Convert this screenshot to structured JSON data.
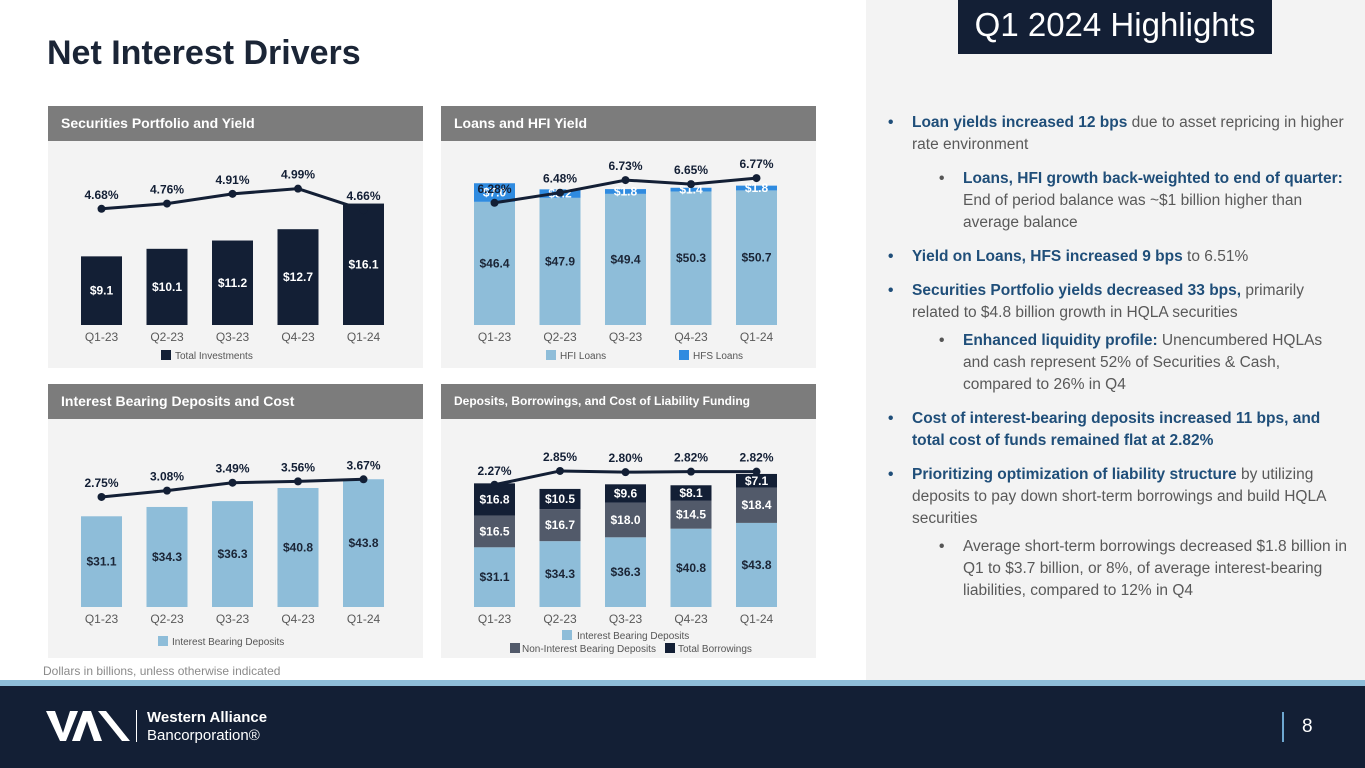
{
  "title": "Net Interest Drivers",
  "highlights_badge": "Q1 2024 Highlights",
  "footnote": "Dollars in billions, unless otherwise indicated",
  "footer": {
    "company_line1": "Western Alliance",
    "company_line2": "Bancorporation®",
    "page_number": "8"
  },
  "colors": {
    "navy": "#131f35",
    "blue": "#2f8be0",
    "light_blue": "#8ebdd9",
    "gray_bar": "#525a6a",
    "accent_text": "#1f4e79"
  },
  "bullets": [
    {
      "level": 1,
      "bold": "Loan yields increased 12 bps",
      "text": " due to asset repricing in higher rate environment"
    },
    {
      "level": 2,
      "bold": "Loans, HFI growth back-weighted to end of quarter:",
      "text": " End of period balance was ~$1 billion higher than average balance"
    },
    {
      "level": 1,
      "bold": "Yield on Loans, HFS increased 9 bps",
      "text": " to 6.51%"
    },
    {
      "level": 1,
      "bold": "Securities Portfolio yields decreased 33 bps,",
      "text": " primarily related to $4.8 billion growth in HQLA securities"
    },
    {
      "level": 2,
      "bold": "Enhanced liquidity profile:",
      "text": "  Unencumbered HQLAs and cash represent 52% of Securities & Cash, compared to 26% in Q4"
    },
    {
      "level": 1,
      "bold": "Cost of interest-bearing deposits increased 11 bps, and total cost of funds remained flat at 2.82%",
      "text": ""
    },
    {
      "level": 1,
      "bold": "Prioritizing optimization of liability structure",
      "text": " by utilizing deposits to pay down short-term borrowings and build HQLA securities"
    },
    {
      "level": 2,
      "bold": "",
      "text": "Average short-term borrowings decreased $1.8 billion in Q1 to $3.7 billion, or 8%, of average interest-bearing liabilities, compared to 12% in Q4"
    }
  ],
  "chart_data": [
    {
      "id": "securities",
      "type": "bar",
      "title": "Securities Portfolio and Yield",
      "categories": [
        "Q1-23",
        "Q2-23",
        "Q3-23",
        "Q4-23",
        "Q1-24"
      ],
      "series": [
        {
          "name": "Total Investments",
          "color": "#131f35",
          "values": [
            9.1,
            10.1,
            11.2,
            12.7,
            16.1
          ],
          "labels": [
            "$9.1",
            "$10.1",
            "$11.2",
            "$12.7",
            "$16.1"
          ]
        }
      ],
      "line": {
        "name": "Yield",
        "values": [
          4.68,
          4.76,
          4.91,
          4.99,
          4.66
        ],
        "labels": [
          "4.68%",
          "4.76%",
          "4.91%",
          "4.99%",
          "4.66%"
        ],
        "range": [
          4.0,
          5.2
        ]
      },
      "ymax": 17.5,
      "legend": [
        {
          "name": "Total Investments",
          "color": "#131f35"
        }
      ]
    },
    {
      "id": "loans",
      "type": "bar",
      "stacked": true,
      "title": "Loans and HFI Yield",
      "categories": [
        "Q1-23",
        "Q2-23",
        "Q3-23",
        "Q4-23",
        "Q1-24"
      ],
      "series": [
        {
          "name": "HFI Loans",
          "color": "#8ebdd9",
          "values": [
            46.4,
            47.9,
            49.4,
            50.3,
            50.7
          ],
          "labels": [
            "$46.4",
            "$47.9",
            "$49.4",
            "$50.3",
            "$50.7"
          ]
        },
        {
          "name": "HFS Loans",
          "color": "#2f8be0",
          "values": [
            7.0,
            3.2,
            1.8,
            1.4,
            1.8
          ],
          "labels": [
            "$7.0",
            "$3.2",
            "$1.8",
            "$1.4",
            "$1.8"
          ]
        }
      ],
      "line": {
        "name": "Yield",
        "values": [
          6.28,
          6.48,
          6.73,
          6.65,
          6.77
        ],
        "labels": [
          "6.28%",
          "6.48%",
          "6.73%",
          "6.65%",
          "6.77%"
        ],
        "range": [
          5.8,
          6.95
        ]
      },
      "ymax": 55,
      "legend": [
        {
          "name": "HFI Loans",
          "color": "#8ebdd9"
        },
        {
          "name": "HFS Loans",
          "color": "#2f8be0"
        }
      ]
    },
    {
      "id": "deposits",
      "type": "bar",
      "title": "Interest Bearing Deposits and Cost",
      "categories": [
        "Q1-23",
        "Q2-23",
        "Q3-23",
        "Q4-23",
        "Q1-24"
      ],
      "series": [
        {
          "name": "Interest Bearing Deposits",
          "color": "#8ebdd9",
          "values": [
            31.1,
            34.3,
            36.3,
            40.8,
            43.8
          ],
          "labels": [
            "$31.1",
            "$34.3",
            "$36.3",
            "$40.8",
            "$43.8"
          ]
        }
      ],
      "line": {
        "name": "Cost",
        "values": [
          2.75,
          3.08,
          3.49,
          3.56,
          3.67
        ],
        "labels": [
          "2.75%",
          "3.08%",
          "3.49%",
          "3.56%",
          "3.67%"
        ],
        "range": [
          1.5,
          4.1
        ]
      },
      "ymax": 48,
      "legend": [
        {
          "name": "Interest Bearing Deposits",
          "color": "#8ebdd9"
        }
      ]
    },
    {
      "id": "funding",
      "type": "bar",
      "stacked": true,
      "title": "Deposits, Borrowings, and Cost of Liability Funding",
      "categories": [
        "Q1-23",
        "Q2-23",
        "Q3-23",
        "Q4-23",
        "Q1-24"
      ],
      "series": [
        {
          "name": "Interest Bearing Deposits",
          "color": "#8ebdd9",
          "values": [
            31.1,
            34.3,
            36.3,
            40.8,
            43.8
          ],
          "labels": [
            "$31.1",
            "$34.3",
            "$36.3",
            "$40.8",
            "$43.8"
          ]
        },
        {
          "name": "Non-Interest Bearing Deposits",
          "color": "#525a6a",
          "values": [
            16.5,
            16.7,
            18.0,
            14.5,
            18.4
          ],
          "labels": [
            "$16.5",
            "$16.7",
            "$18.0",
            "$14.5",
            "$18.4"
          ]
        },
        {
          "name": "Total Borrowings",
          "color": "#131f35",
          "values": [
            16.8,
            10.5,
            9.6,
            8.1,
            7.1
          ],
          "labels": [
            "$16.8",
            "$10.5",
            "$9.6",
            "$8.1",
            "$7.1"
          ]
        }
      ],
      "line": {
        "name": "Cost of Liability Funding",
        "values": [
          2.27,
          2.85,
          2.8,
          2.82,
          2.82
        ],
        "labels": [
          "2.27%",
          "2.85%",
          "2.80%",
          "2.82%",
          "2.82%"
        ],
        "range": [
          1.0,
          3.1
        ]
      },
      "ymax": 75,
      "legend": [
        {
          "name": "Interest Bearing Deposits",
          "color": "#8ebdd9"
        },
        {
          "name": "Non-Interest Bearing Deposits",
          "color": "#525a6a"
        },
        {
          "name": "Total Borrowings",
          "color": "#131f35"
        }
      ]
    }
  ]
}
